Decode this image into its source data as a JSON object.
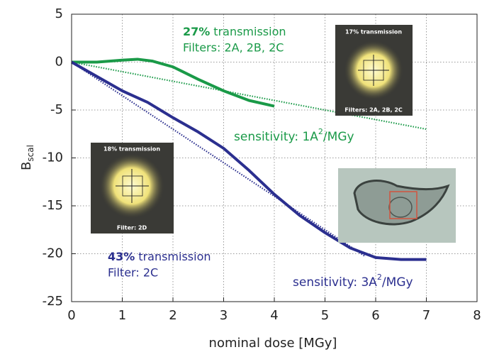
{
  "chart_data": {
    "type": "line",
    "xlabel": "nominal dose [MGy]",
    "ylabel": "B",
    "ylabel_sub": "scal",
    "xlim": [
      0,
      8
    ],
    "xticks": [
      0,
      1,
      2,
      3,
      4,
      5,
      6,
      7,
      8
    ],
    "ylim": [
      -25,
      5
    ],
    "yticks": [
      -25,
      -20,
      -15,
      -10,
      -5,
      0,
      5
    ],
    "grid": true,
    "series": [
      {
        "color": "#1a9a48",
        "style": "solid",
        "x": [
          0,
          0.5,
          1,
          1.3,
          1.6,
          2,
          2.5,
          3,
          3.5,
          4
        ],
        "values": [
          0,
          0,
          0.2,
          0.3,
          0.1,
          -0.5,
          -1.8,
          -3,
          -4,
          -4.6
        ]
      },
      {
        "color": "#1a9a48",
        "style": "dotted",
        "x": [
          0,
          7
        ],
        "values": [
          0,
          -7
        ]
      },
      {
        "color": "#2b2f8f",
        "style": "solid",
        "x": [
          0,
          0.5,
          1,
          1.5,
          2,
          2.5,
          3,
          3.5,
          4,
          4.5,
          5,
          5.5,
          6,
          6.5,
          7
        ],
        "values": [
          0,
          -1.5,
          -3,
          -4.2,
          -5.8,
          -7.3,
          -9,
          -11.3,
          -13.8,
          -16,
          -17.8,
          -19.4,
          -20.4,
          -20.6,
          -20.6
        ]
      },
      {
        "color": "#2b2f8f",
        "style": "dotted",
        "x": [
          0,
          5.8
        ],
        "values": [
          0,
          -20.3
        ]
      }
    ],
    "annotations": {
      "green_pct": "27%",
      "green_trans": "transmission",
      "green_filters": "Filters: 2A, 2B, 2C",
      "green_sens": "sensitivity: 1A",
      "green_sens_sup": "2",
      "green_sens_unit": "/MGy",
      "blue_pct": "43%",
      "blue_trans": "transmission",
      "blue_filters": "Filter: 2C",
      "blue_sens": "sensitivity: 3A",
      "blue_sens_sup": "2",
      "blue_sens_unit": "/MGy"
    },
    "insets": {
      "top_title": "17% transmission",
      "top_filter": "Filters: 2A, 2B, 2C",
      "left_title": "18% transmission",
      "left_filter": "Filter: 2D"
    }
  }
}
